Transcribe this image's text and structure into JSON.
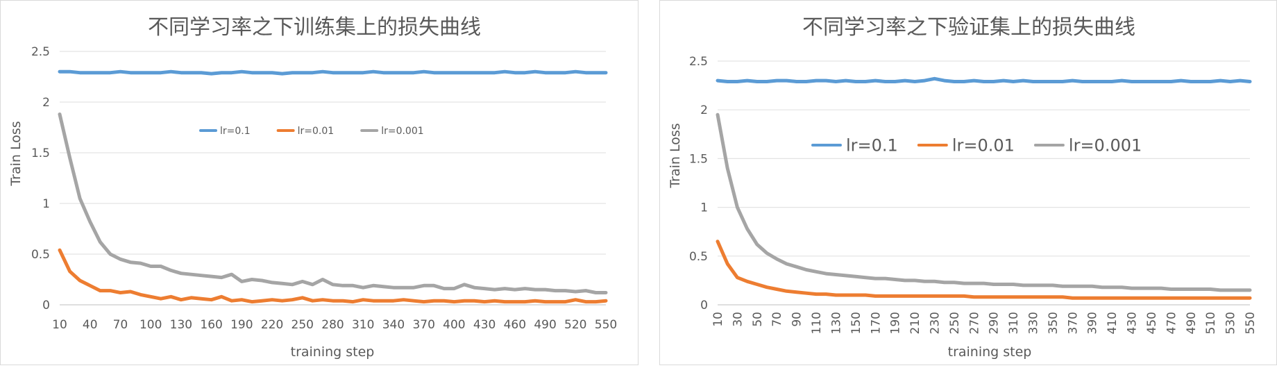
{
  "chart_data": [
    {
      "type": "line",
      "title": "不同学习率之下训练集上的损失曲线",
      "xlabel": "training   step",
      "ylabel": "Train  Loss",
      "ylim": [
        0,
        2.5
      ],
      "yticks": [
        "0",
        "0.5",
        "1",
        "1.5",
        "2",
        "2.5"
      ],
      "xticks": [
        "10",
        "40",
        "70",
        "100",
        "130",
        "160",
        "190",
        "220",
        "250",
        "280",
        "310",
        "340",
        "370",
        "400",
        "430",
        "460",
        "490",
        "520",
        "550"
      ],
      "grid": true,
      "legend_position": "center",
      "x": [
        10,
        20,
        30,
        40,
        50,
        60,
        70,
        80,
        90,
        100,
        110,
        120,
        130,
        140,
        150,
        160,
        170,
        180,
        190,
        200,
        210,
        220,
        230,
        240,
        250,
        260,
        270,
        280,
        290,
        300,
        310,
        320,
        330,
        340,
        350,
        360,
        370,
        380,
        390,
        400,
        410,
        420,
        430,
        440,
        450,
        460,
        470,
        480,
        490,
        500,
        510,
        520,
        530,
        540,
        550
      ],
      "series": [
        {
          "name": "lr=0.1",
          "color": "#5b9bd5",
          "values": [
            2.3,
            2.3,
            2.29,
            2.29,
            2.29,
            2.29,
            2.3,
            2.29,
            2.29,
            2.29,
            2.29,
            2.3,
            2.29,
            2.29,
            2.29,
            2.28,
            2.29,
            2.29,
            2.3,
            2.29,
            2.29,
            2.29,
            2.28,
            2.29,
            2.29,
            2.29,
            2.3,
            2.29,
            2.29,
            2.29,
            2.29,
            2.3,
            2.29,
            2.29,
            2.29,
            2.29,
            2.3,
            2.29,
            2.29,
            2.29,
            2.29,
            2.29,
            2.29,
            2.29,
            2.3,
            2.29,
            2.29,
            2.3,
            2.29,
            2.29,
            2.29,
            2.3,
            2.29,
            2.29,
            2.29
          ]
        },
        {
          "name": "lr=0.01",
          "color": "#ed7d31",
          "values": [
            0.54,
            0.33,
            0.24,
            0.19,
            0.14,
            0.14,
            0.12,
            0.13,
            0.1,
            0.08,
            0.06,
            0.08,
            0.05,
            0.07,
            0.06,
            0.05,
            0.08,
            0.04,
            0.05,
            0.03,
            0.04,
            0.05,
            0.04,
            0.05,
            0.07,
            0.04,
            0.05,
            0.04,
            0.04,
            0.03,
            0.05,
            0.04,
            0.04,
            0.04,
            0.05,
            0.04,
            0.03,
            0.04,
            0.04,
            0.03,
            0.04,
            0.04,
            0.03,
            0.04,
            0.03,
            0.03,
            0.03,
            0.04,
            0.03,
            0.03,
            0.03,
            0.05,
            0.03,
            0.03,
            0.04
          ]
        },
        {
          "name": "lr=0.001",
          "color": "#a5a5a5",
          "values": [
            1.88,
            1.45,
            1.05,
            0.82,
            0.62,
            0.5,
            0.45,
            0.42,
            0.41,
            0.38,
            0.38,
            0.34,
            0.31,
            0.3,
            0.29,
            0.28,
            0.27,
            0.3,
            0.23,
            0.25,
            0.24,
            0.22,
            0.21,
            0.2,
            0.23,
            0.2,
            0.25,
            0.2,
            0.19,
            0.19,
            0.17,
            0.19,
            0.18,
            0.17,
            0.17,
            0.17,
            0.19,
            0.19,
            0.16,
            0.16,
            0.2,
            0.17,
            0.16,
            0.15,
            0.16,
            0.15,
            0.16,
            0.15,
            0.15,
            0.14,
            0.14,
            0.13,
            0.14,
            0.12,
            0.12
          ]
        }
      ]
    },
    {
      "type": "line",
      "title": "不同学习率之下验证集上的损失曲线",
      "xlabel": "training   step",
      "ylabel": "Train  Loss",
      "ylim": [
        0,
        2.5
      ],
      "yticks": [
        "0",
        "0.5",
        "1",
        "1.5",
        "2",
        "2.5"
      ],
      "xticks": [
        "10",
        "30",
        "50",
        "70",
        "90",
        "110",
        "130",
        "150",
        "170",
        "190",
        "210",
        "230",
        "250",
        "270",
        "290",
        "310",
        "330",
        "350",
        "370",
        "390",
        "410",
        "430",
        "450",
        "470",
        "490",
        "510",
        "530",
        "550"
      ],
      "grid": true,
      "legend_position": "center",
      "x": [
        10,
        20,
        30,
        40,
        50,
        60,
        70,
        80,
        90,
        100,
        110,
        120,
        130,
        140,
        150,
        160,
        170,
        180,
        190,
        200,
        210,
        220,
        230,
        240,
        250,
        260,
        270,
        280,
        290,
        300,
        310,
        320,
        330,
        340,
        350,
        360,
        370,
        380,
        390,
        400,
        410,
        420,
        430,
        440,
        450,
        460,
        470,
        480,
        490,
        500,
        510,
        520,
        530,
        540,
        550
      ],
      "series": [
        {
          "name": "lr=0.1",
          "color": "#5b9bd5",
          "values": [
            2.3,
            2.29,
            2.29,
            2.3,
            2.29,
            2.29,
            2.3,
            2.3,
            2.29,
            2.29,
            2.3,
            2.3,
            2.29,
            2.3,
            2.29,
            2.29,
            2.3,
            2.29,
            2.29,
            2.3,
            2.29,
            2.3,
            2.32,
            2.3,
            2.29,
            2.29,
            2.3,
            2.29,
            2.29,
            2.3,
            2.29,
            2.3,
            2.29,
            2.29,
            2.29,
            2.29,
            2.3,
            2.29,
            2.29,
            2.29,
            2.29,
            2.3,
            2.29,
            2.29,
            2.29,
            2.29,
            2.29,
            2.3,
            2.29,
            2.29,
            2.29,
            2.3,
            2.29,
            2.3,
            2.29
          ]
        },
        {
          "name": "lr=0.01",
          "color": "#ed7d31",
          "values": [
            0.65,
            0.42,
            0.28,
            0.24,
            0.21,
            0.18,
            0.16,
            0.14,
            0.13,
            0.12,
            0.11,
            0.11,
            0.1,
            0.1,
            0.1,
            0.1,
            0.09,
            0.09,
            0.09,
            0.09,
            0.09,
            0.09,
            0.09,
            0.09,
            0.09,
            0.09,
            0.08,
            0.08,
            0.08,
            0.08,
            0.08,
            0.08,
            0.08,
            0.08,
            0.08,
            0.08,
            0.07,
            0.07,
            0.07,
            0.07,
            0.07,
            0.07,
            0.07,
            0.07,
            0.07,
            0.07,
            0.07,
            0.07,
            0.07,
            0.07,
            0.07,
            0.07,
            0.07,
            0.07,
            0.07
          ]
        },
        {
          "name": "lr=0.001",
          "color": "#a5a5a5",
          "values": [
            1.95,
            1.4,
            1.0,
            0.78,
            0.62,
            0.53,
            0.47,
            0.42,
            0.39,
            0.36,
            0.34,
            0.32,
            0.31,
            0.3,
            0.29,
            0.28,
            0.27,
            0.27,
            0.26,
            0.25,
            0.25,
            0.24,
            0.24,
            0.23,
            0.23,
            0.22,
            0.22,
            0.22,
            0.21,
            0.21,
            0.21,
            0.2,
            0.2,
            0.2,
            0.2,
            0.19,
            0.19,
            0.19,
            0.19,
            0.18,
            0.18,
            0.18,
            0.17,
            0.17,
            0.17,
            0.17,
            0.16,
            0.16,
            0.16,
            0.16,
            0.16,
            0.15,
            0.15,
            0.15,
            0.15
          ]
        }
      ]
    }
  ]
}
